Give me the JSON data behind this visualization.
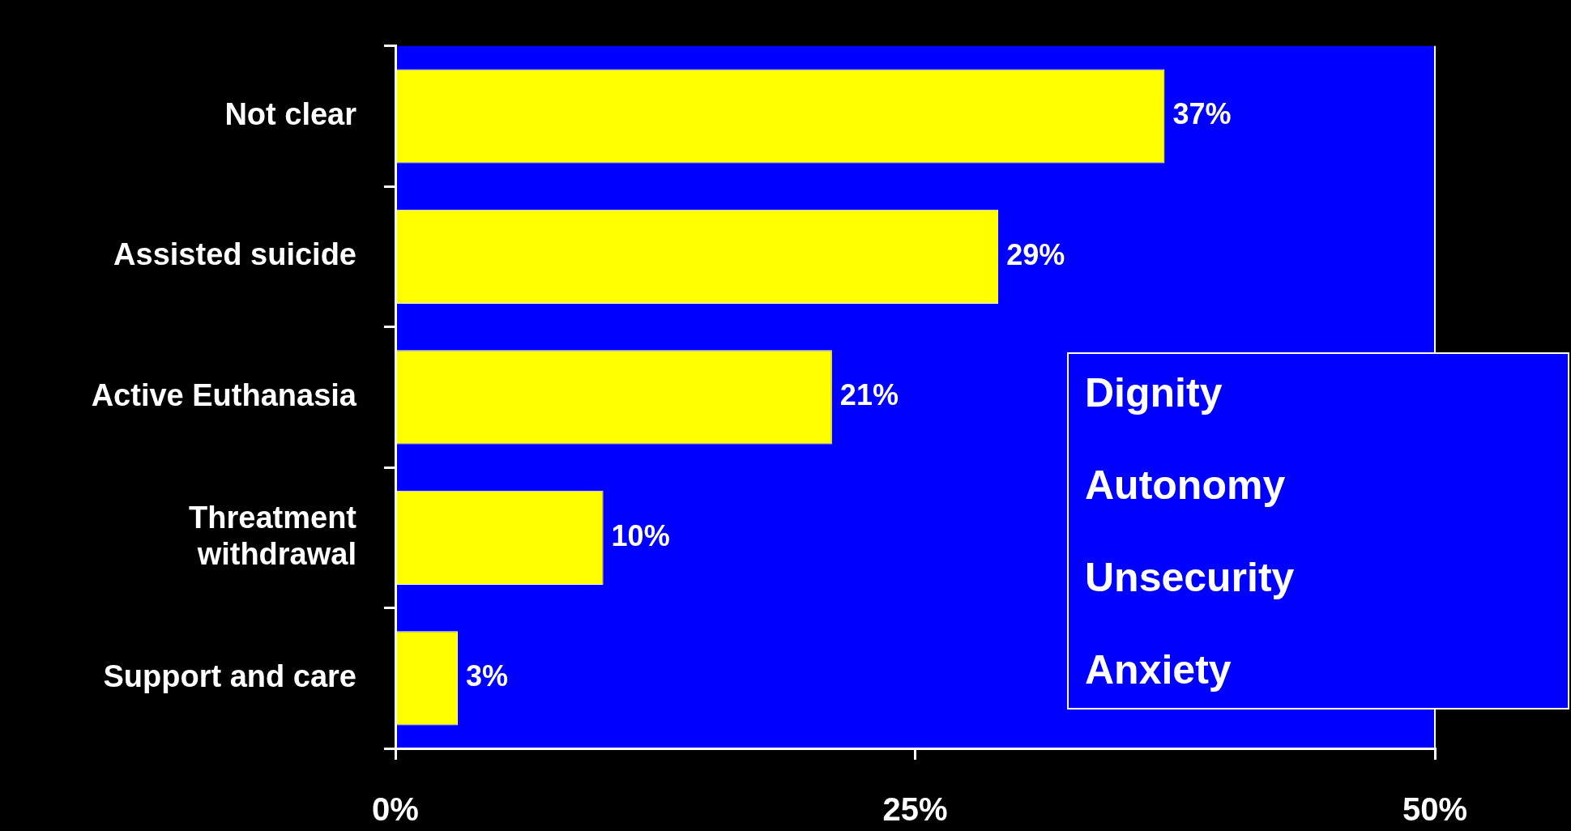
{
  "chart_data": {
    "type": "bar",
    "orientation": "horizontal",
    "categories": [
      "Not clear",
      "Assisted suicide",
      "Active Euthanasia",
      "Threatment\nwithdrawal",
      "Support and care"
    ],
    "values": [
      37,
      29,
      21,
      10,
      3
    ],
    "value_labels": [
      "37%",
      "29%",
      "21%",
      "10%",
      "3%"
    ],
    "color": "#ffff00",
    "xlim": [
      0,
      50
    ],
    "xticks": [
      {
        "value": 0,
        "label": "0%"
      },
      {
        "value": 25,
        "label": "25%"
      },
      {
        "value": 50,
        "label": "50%"
      }
    ],
    "grid": false,
    "legend": false,
    "annotations": [
      "Dignity",
      "Autonomy",
      "Unsecurity",
      "Anxiety"
    ]
  }
}
